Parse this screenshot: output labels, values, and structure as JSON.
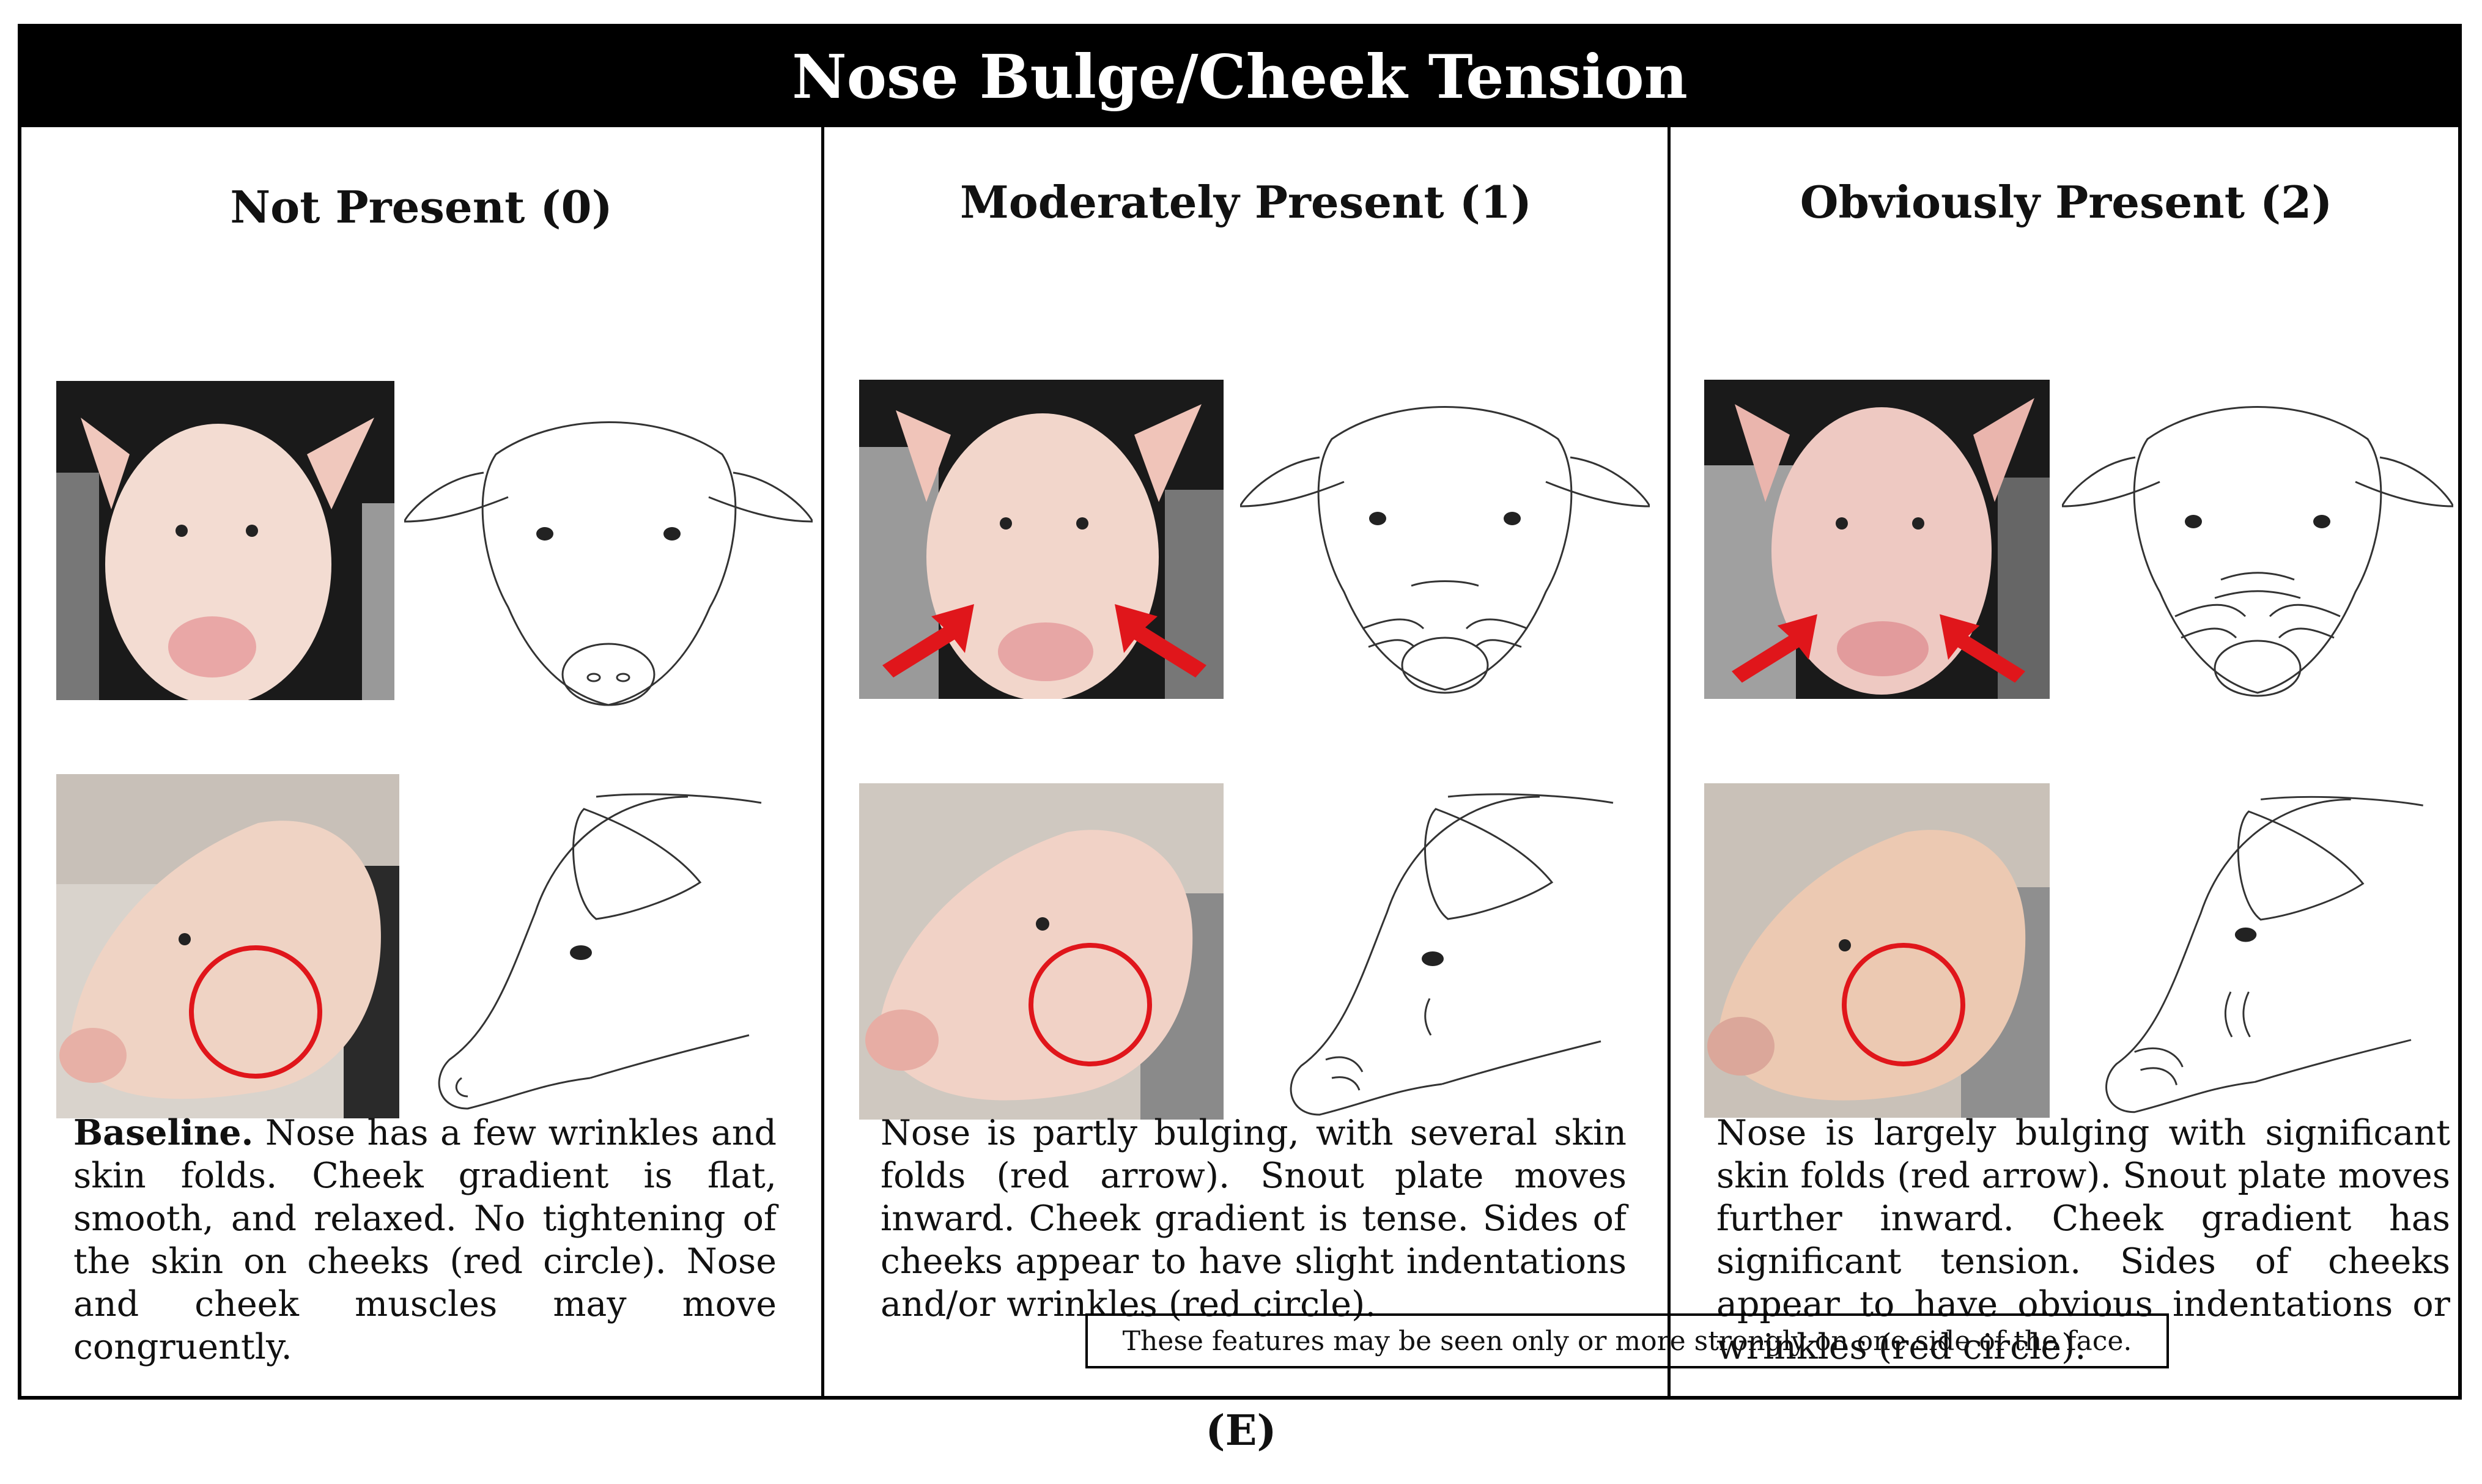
{
  "title": "Nose Bulge/Cheek Tension",
  "columns": [
    {
      "heading": "Not Present (0)",
      "desc_lead": "Baseline.",
      "desc": "Nose has a few wrinkles and skin folds. Cheek gradient is flat, smooth, and relaxed. No tightening of the skin on cheeks (red circle). Nose and cheek muscles may move congruently."
    },
    {
      "heading": "Moderately Present (1)",
      "desc_lead": "",
      "desc": "Nose is partly bulging, with several skin folds (red arrow). Snout plate moves inward. Cheek gradient is tense. Sides of cheeks appear to have slight indentations and/or wrinkles (red circle)."
    },
    {
      "heading": "Obviously Present (2)",
      "desc_lead": "",
      "desc": "Nose is largely bulging with significant skin folds (red arrow). Snout plate moves further inward. Cheek gradient has significant tension. Sides of cheeks appear to have obvious indentations or wrinkles (red circle)."
    }
  ],
  "note": "These features may be seen only or more strongly on one side of the face.",
  "panel_label": "(E)",
  "colors": {
    "marker": "#e0161b",
    "frame": "#000000"
  }
}
